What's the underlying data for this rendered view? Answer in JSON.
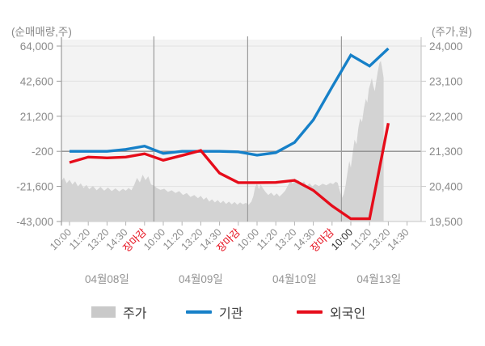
{
  "axes": {
    "left": {
      "caption": "(순매매량,주)",
      "tick_labels": [
        "64,000",
        "42,600",
        "21,200",
        "-200",
        "-21,600",
        "-43,000"
      ]
    },
    "right": {
      "caption": "(주가,원)",
      "tick_labels": [
        "24,000",
        "23,100",
        "22,200",
        "21,300",
        "20,400",
        "19,500"
      ]
    },
    "x": {
      "days": [
        {
          "date": "04월08일",
          "times": [
            "10:00",
            "11:20",
            "13:20",
            "14:30",
            "장마감"
          ]
        },
        {
          "date": "04월09일",
          "times": [
            "10:00",
            "11:20",
            "13:20",
            "14:30",
            "장마감"
          ]
        },
        {
          "date": "04월10일",
          "times": [
            "10:00",
            "11:20",
            "13:20",
            "14:30",
            "장마감"
          ]
        },
        {
          "date": "04월13일",
          "times": [
            "10:00",
            "11:20",
            "13:20",
            "14:30"
          ],
          "emphasized_time_index": 0
        }
      ]
    }
  },
  "legend": [
    {
      "label": "주가",
      "type": "area",
      "color": "#c9c9c9"
    },
    {
      "label": "기관",
      "type": "line",
      "color": "#1680c8"
    },
    {
      "label": "외국인",
      "type": "line",
      "color": "#e60c1a"
    }
  ],
  "colors": {
    "price_area": "#d3d3d3",
    "institution": "#1680c8",
    "foreign": "#e60c1a",
    "plot_bg": "#f3f3f3",
    "grid_light": "#e1e1e1",
    "grid_zero": "#8c8c8c",
    "grid_bottom": "#c4c4c4",
    "grid_day": "#9b9b9b",
    "axis_line": "#9b9b9b",
    "right_axis_line": "#c8c8c8",
    "tick_mark": "#b5b5b5",
    "tick_text": "#8a8a8a",
    "date_text": "#949494",
    "time_text": "#8a8a8a",
    "close_text": "#e60c1a",
    "emphasis_text": "#2e2e2e"
  },
  "chart_data": {
    "type": "mixed",
    "left_axis": {
      "label": "(순매매량,주)",
      "unit": "주",
      "ticks": [
        64000,
        42600,
        21200,
        -200,
        -21600,
        -43000
      ]
    },
    "right_axis": {
      "label": "(주가,원)",
      "unit": "원",
      "ticks": [
        24000,
        23100,
        22200,
        21300,
        20400,
        19500
      ]
    },
    "x_points_per_day": [
      5,
      5,
      5,
      4
    ],
    "series": [
      {
        "name": "주가",
        "type": "area",
        "axis": "right",
        "samples": [
          [
            -0.45,
            20520
          ],
          [
            -0.3,
            20630
          ],
          [
            -0.15,
            20480
          ],
          [
            0,
            20570
          ],
          [
            0.15,
            20450
          ],
          [
            0.3,
            20530
          ],
          [
            0.45,
            20400
          ],
          [
            0.6,
            20480
          ],
          [
            0.75,
            20360
          ],
          [
            0.9,
            20440
          ],
          [
            1.05,
            20330
          ],
          [
            1.25,
            20410
          ],
          [
            1.45,
            20300
          ],
          [
            1.65,
            20390
          ],
          [
            1.85,
            20290
          ],
          [
            2.05,
            20370
          ],
          [
            2.25,
            20280
          ],
          [
            2.45,
            20350
          ],
          [
            2.65,
            20270
          ],
          [
            2.85,
            20340
          ],
          [
            3.0,
            20290
          ],
          [
            3.15,
            20360
          ],
          [
            3.3,
            20300
          ],
          [
            3.45,
            20440
          ],
          [
            3.6,
            20620
          ],
          [
            3.75,
            20500
          ],
          [
            3.9,
            20700
          ],
          [
            4.05,
            20560
          ],
          [
            4.2,
            20660
          ],
          [
            4.35,
            20450
          ],
          [
            4.5,
            20420
          ],
          [
            4.65,
            20360
          ],
          [
            4.85,
            20310
          ],
          [
            5.05,
            20340
          ],
          [
            5.25,
            20260
          ],
          [
            5.45,
            20300
          ],
          [
            5.65,
            20230
          ],
          [
            5.85,
            20280
          ],
          [
            6.05,
            20180
          ],
          [
            6.25,
            20230
          ],
          [
            6.45,
            20130
          ],
          [
            6.65,
            20180
          ],
          [
            6.85,
            20100
          ],
          [
            7.0,
            20160
          ],
          [
            7.15,
            20060
          ],
          [
            7.3,
            20120
          ],
          [
            7.45,
            20010
          ],
          [
            7.6,
            20070
          ],
          [
            7.75,
            19990
          ],
          [
            7.9,
            20050
          ],
          [
            8.05,
            19970
          ],
          [
            8.2,
            20030
          ],
          [
            8.35,
            19950
          ],
          [
            8.5,
            20010
          ],
          [
            8.65,
            19940
          ],
          [
            8.8,
            20000
          ],
          [
            8.95,
            19930
          ],
          [
            9.1,
            19990
          ],
          [
            9.25,
            19940
          ],
          [
            9.4,
            19980
          ],
          [
            9.55,
            19930
          ],
          [
            9.7,
            20010
          ],
          [
            9.8,
            20150
          ],
          [
            9.9,
            20390
          ],
          [
            10.0,
            20470
          ],
          [
            10.1,
            20330
          ],
          [
            10.2,
            20450
          ],
          [
            10.3,
            20360
          ],
          [
            10.45,
            20260
          ],
          [
            10.6,
            20180
          ],
          [
            10.75,
            20240
          ],
          [
            10.9,
            20160
          ],
          [
            11.05,
            20220
          ],
          [
            11.2,
            20140
          ],
          [
            11.35,
            20210
          ],
          [
            11.5,
            20290
          ],
          [
            11.65,
            20430
          ],
          [
            11.8,
            20560
          ],
          [
            11.9,
            20460
          ],
          [
            12.0,
            20610
          ],
          [
            12.1,
            20480
          ],
          [
            12.2,
            20570
          ],
          [
            12.35,
            20440
          ],
          [
            12.5,
            20530
          ],
          [
            12.65,
            20420
          ],
          [
            12.8,
            20480
          ],
          [
            12.95,
            20400
          ],
          [
            13.1,
            20460
          ],
          [
            13.3,
            20410
          ],
          [
            13.5,
            20470
          ],
          [
            13.7,
            20430
          ],
          [
            13.9,
            20490
          ],
          [
            14.05,
            20460
          ],
          [
            14.2,
            20520
          ],
          [
            14.3,
            20490
          ],
          [
            14.42,
            20280
          ],
          [
            14.52,
            20100
          ],
          [
            14.62,
            20200
          ],
          [
            14.72,
            20420
          ],
          [
            14.82,
            20750
          ],
          [
            14.92,
            21050
          ],
          [
            15.0,
            20880
          ],
          [
            15.1,
            21250
          ],
          [
            15.2,
            21600
          ],
          [
            15.3,
            21480
          ],
          [
            15.4,
            21900
          ],
          [
            15.5,
            22150
          ],
          [
            15.6,
            22050
          ],
          [
            15.7,
            22400
          ],
          [
            15.8,
            22650
          ],
          [
            15.88,
            22550
          ],
          [
            15.96,
            22900
          ],
          [
            16.05,
            23050
          ],
          [
            16.12,
            23180
          ],
          [
            16.2,
            22980
          ],
          [
            16.28,
            22840
          ],
          [
            16.36,
            23120
          ],
          [
            16.44,
            23350
          ],
          [
            16.52,
            23560
          ],
          [
            16.6,
            23620
          ],
          [
            16.68,
            23400
          ],
          [
            16.75,
            23180
          ]
        ]
      },
      {
        "name": "기관",
        "type": "line",
        "axis": "left",
        "values": [
          -200,
          -200,
          -200,
          1000,
          3000,
          -1500,
          -200,
          -200,
          -200,
          -500,
          -2500,
          -1000,
          5200,
          19000,
          39000,
          58500,
          51800,
          62500,
          null
        ]
      },
      {
        "name": "외국인",
        "type": "line",
        "axis": "left",
        "values": [
          -7000,
          -3700,
          -4200,
          -3700,
          -1700,
          -5600,
          -2700,
          300,
          -13500,
          -19300,
          -19300,
          -19200,
          -17900,
          -24000,
          -33500,
          -41300,
          -41300,
          17000,
          null
        ]
      }
    ]
  }
}
